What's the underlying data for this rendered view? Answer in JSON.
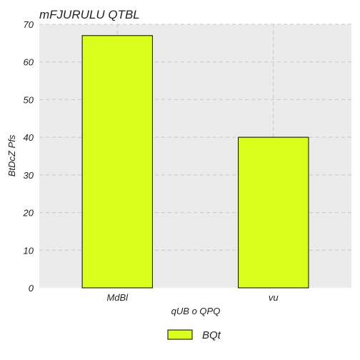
{
  "chart_data": {
    "type": "bar",
    "title": "mFJURULU QTBL",
    "xlabel": "qUB o QPQ",
    "ylabel": "BtDcZ Pfs",
    "categories": [
      "MdBl",
      "vu"
    ],
    "series": [
      {
        "name": "BQt",
        "values": [
          67,
          40
        ],
        "color": "#dbff1c"
      }
    ],
    "ylim": [
      0,
      70
    ],
    "yticks": [
      0,
      10,
      20,
      30,
      40,
      50,
      60,
      70
    ],
    "grid": true,
    "legend": "bottom-center",
    "colors": {
      "plot_background": "#ebebeb",
      "grid": "#c8c8c8",
      "bar_edge": "#000000"
    }
  }
}
